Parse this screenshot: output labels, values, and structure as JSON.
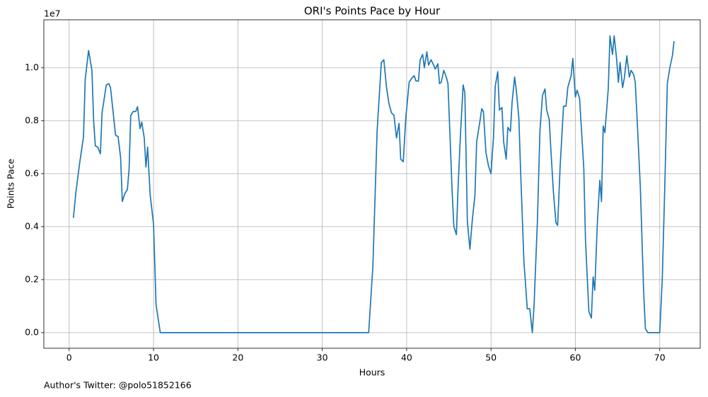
{
  "chart_data": {
    "type": "line",
    "title": "ORI's Points Pace by Hour",
    "x_label": "Hours",
    "y_label": "Points Pace",
    "y_offset_label": "1e7",
    "footnote": "Author's Twitter: @polo51852166",
    "x": [
      0.5,
      0.8,
      1.2,
      1.7,
      1.9,
      2.3,
      2.7,
      2.9,
      3.1,
      3.4,
      3.7,
      3.9,
      4.4,
      4.7,
      4.9,
      5.5,
      5.8,
      6.1,
      6.3,
      6.6,
      6.9,
      7.1,
      7.3,
      7.6,
      7.9,
      8.1,
      8.4,
      8.6,
      8.9,
      9.1,
      9.3,
      9.6,
      10.0,
      10.1,
      10.3,
      10.8,
      20.0,
      30.0,
      35.5,
      35.7,
      36.0,
      36.5,
      37.0,
      37.3,
      37.6,
      37.9,
      38.2,
      38.5,
      38.8,
      39.1,
      39.3,
      39.6,
      39.9,
      40.3,
      40.6,
      40.9,
      41.1,
      41.4,
      41.6,
      41.9,
      42.1,
      42.4,
      42.6,
      42.9,
      43.2,
      43.4,
      43.7,
      43.9,
      44.1,
      44.4,
      44.7,
      44.9,
      45.4,
      45.6,
      45.9,
      46.1,
      46.4,
      46.7,
      46.9,
      47.2,
      47.5,
      47.8,
      48.1,
      48.3,
      48.7,
      48.9,
      49.1,
      49.4,
      49.7,
      50.0,
      50.3,
      50.5,
      50.8,
      51.0,
      51.3,
      51.5,
      51.8,
      52.0,
      52.3,
      52.5,
      52.8,
      53.0,
      53.3,
      53.5,
      53.9,
      54.3,
      54.6,
      54.9,
      55.1,
      55.5,
      55.8,
      56.1,
      56.4,
      56.6,
      56.9,
      57.1,
      57.4,
      57.7,
      57.9,
      58.2,
      58.6,
      58.9,
      59.1,
      59.5,
      59.7,
      60.0,
      60.2,
      60.5,
      61.0,
      61.2,
      61.6,
      61.9,
      62.1,
      62.3,
      62.6,
      62.9,
      63.1,
      63.3,
      63.5,
      63.9,
      64.1,
      64.4,
      64.6,
      64.9,
      65.1,
      65.3,
      65.6,
      65.8,
      66.1,
      66.4,
      66.6,
      66.9,
      67.1,
      67.3,
      67.7,
      68.1,
      68.3,
      68.6,
      70.0,
      70.3,
      70.6,
      70.9,
      71.2,
      71.5,
      71.7
    ],
    "series": [
      {
        "name": "Points Pace",
        "color": "#1f77b4",
        "values": [
          0.433,
          0.53,
          0.63,
          0.74,
          0.955,
          1.065,
          0.99,
          0.8,
          0.705,
          0.7,
          0.675,
          0.83,
          0.935,
          0.94,
          0.925,
          0.745,
          0.74,
          0.66,
          0.495,
          0.525,
          0.54,
          0.615,
          0.82,
          0.835,
          0.835,
          0.853,
          0.77,
          0.795,
          0.735,
          0.625,
          0.7,
          0.52,
          0.41,
          0.31,
          0.105,
          0,
          0,
          0,
          0,
          0.1,
          0.25,
          0.76,
          1.02,
          1.03,
          0.93,
          0.865,
          0.83,
          0.82,
          0.735,
          0.79,
          0.655,
          0.645,
          0.81,
          0.945,
          0.96,
          0.97,
          0.95,
          0.95,
          1.03,
          1.05,
          1.0,
          1.06,
          1.01,
          1.03,
          1.01,
          0.995,
          1.015,
          0.94,
          0.945,
          0.99,
          0.965,
          0.94,
          0.53,
          0.4,
          0.37,
          0.55,
          0.76,
          0.935,
          0.905,
          0.42,
          0.315,
          0.43,
          0.52,
          0.72,
          0.8,
          0.845,
          0.835,
          0.68,
          0.63,
          0.6,
          0.74,
          0.93,
          0.985,
          0.84,
          0.85,
          0.72,
          0.655,
          0.775,
          0.76,
          0.87,
          0.965,
          0.915,
          0.81,
          0.62,
          0.27,
          0.09,
          0.09,
          0,
          0.1,
          0.42,
          0.76,
          0.895,
          0.92,
          0.84,
          0.805,
          0.69,
          0.53,
          0.415,
          0.405,
          0.63,
          0.855,
          0.855,
          0.925,
          0.97,
          1.035,
          0.89,
          0.915,
          0.885,
          0.62,
          0.35,
          0.08,
          0.055,
          0.21,
          0.16,
          0.41,
          0.575,
          0.495,
          0.78,
          0.755,
          0.92,
          1.12,
          1.05,
          1.12,
          1.03,
          0.945,
          1.02,
          0.925,
          0.96,
          1.045,
          0.965,
          0.99,
          0.975,
          0.945,
          0.82,
          0.55,
          0.15,
          0.015,
          0,
          0,
          0.2,
          0.55,
          0.94,
          1.0,
          1.045,
          1.1
        ]
      }
    ],
    "xlim": [
      -3.0,
      74.8
    ],
    "ylim": [
      -0.059,
      1.181
    ],
    "xticks": [
      0,
      10,
      20,
      30,
      40,
      50,
      60,
      70
    ],
    "yticks": [
      {
        "value": 0,
        "label": "0.0"
      },
      {
        "value": 0.2,
        "label": "0.2"
      },
      {
        "value": 0.4,
        "label": "0.4"
      },
      {
        "value": 0.6,
        "label": "0.6"
      },
      {
        "value": 0.8,
        "label": "0.8"
      },
      {
        "value": 1.0,
        "label": "1.0"
      }
    ],
    "grid": true
  }
}
